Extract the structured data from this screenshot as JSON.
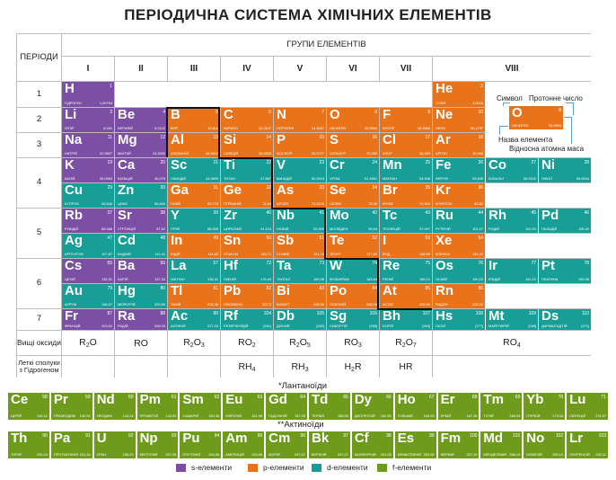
{
  "title": "ПЕРІОДИЧНА СИСТЕМА ХІМІЧНИХ ЕЛЕМЕНТІВ",
  "header": {
    "periods_label": "ПЕРІОДИ",
    "groups_label": "ГРУПИ ЕЛЕМЕНТІВ",
    "groups": [
      "I",
      "II",
      "III",
      "IV",
      "V",
      "VI",
      "VII",
      "VIII"
    ],
    "periods": [
      "1",
      "2",
      "3",
      "4",
      "5",
      "6",
      "7"
    ]
  },
  "elements": [
    {
      "sym": "H",
      "num": "1",
      "name": "Гідроген",
      "mass": "1,00794",
      "type": "s",
      "col": 0,
      "row": 0
    },
    {
      "sym": "He",
      "num": "2",
      "name": "Гелій",
      "mass": "4,0026",
      "type": "p",
      "col": 7,
      "row": 0
    },
    {
      "sym": "Li",
      "num": "3",
      "name": "Літій",
      "mass": "6,941",
      "type": "s",
      "col": 0,
      "row": 1
    },
    {
      "sym": "Be",
      "num": "4",
      "name": "Берилій",
      "mass": "9,0122",
      "type": "s",
      "col": 1,
      "row": 1
    },
    {
      "sym": "B",
      "num": "5",
      "name": "Бор",
      "mass": "10,811",
      "type": "p",
      "col": 2,
      "row": 1
    },
    {
      "sym": "C",
      "num": "6",
      "name": "Карбон",
      "mass": "12,0107",
      "type": "p",
      "col": 3,
      "row": 1
    },
    {
      "sym": "N",
      "num": "7",
      "name": "Нітроген",
      "mass": "14,0067",
      "type": "p",
      "col": 4,
      "row": 1
    },
    {
      "sym": "O",
      "num": "8",
      "name": "Оксиген",
      "mass": "15,9994",
      "type": "p",
      "col": 5,
      "row": 1
    },
    {
      "sym": "F",
      "num": "9",
      "name": "Флуор",
      "mass": "18,9984",
      "type": "p",
      "col": 6,
      "row": 1
    },
    {
      "sym": "Ne",
      "num": "10",
      "name": "Неон",
      "mass": "20,1797",
      "type": "p",
      "col": 7,
      "row": 1
    },
    {
      "sym": "Na",
      "num": "11",
      "name": "Натрій",
      "mass": "22,9897",
      "type": "s",
      "col": 0,
      "row": 2
    },
    {
      "sym": "Mg",
      "num": "12",
      "name": "Магній",
      "mass": "24,3050",
      "type": "s",
      "col": 1,
      "row": 2
    },
    {
      "sym": "Al",
      "num": "13",
      "name": "Алюміній",
      "mass": "26,9815",
      "type": "p",
      "col": 2,
      "row": 2
    },
    {
      "sym": "Si",
      "num": "14",
      "name": "Силіцій",
      "mass": "28,0855",
      "type": "p",
      "col": 3,
      "row": 2
    },
    {
      "sym": "P",
      "num": "15",
      "name": "Фосфор",
      "mass": "30,9737",
      "type": "p",
      "col": 4,
      "row": 2
    },
    {
      "sym": "S",
      "num": "16",
      "name": "Сульфур",
      "mass": "32,065",
      "type": "p",
      "col": 5,
      "row": 2
    },
    {
      "sym": "Cl",
      "num": "17",
      "name": "Хлор",
      "mass": "35,453",
      "type": "p",
      "col": 6,
      "row": 2
    },
    {
      "sym": "Ar",
      "num": "18",
      "name": "Аргон",
      "mass": "39,948",
      "type": "p",
      "col": 7,
      "row": 2
    },
    {
      "sym": "K",
      "num": "19",
      "name": "Калій",
      "mass": "39,0983",
      "type": "s",
      "col": 0,
      "row": 3
    },
    {
      "sym": "Ca",
      "num": "20",
      "name": "Кальцій",
      "mass": "40,078",
      "type": "s",
      "col": 1,
      "row": 3
    },
    {
      "sym": "Sc",
      "num": "21",
      "name": "Скандій",
      "mass": "44,9559",
      "type": "d",
      "col": 2,
      "row": 3
    },
    {
      "sym": "Ti",
      "num": "22",
      "name": "Титан",
      "mass": "47,867",
      "type": "d",
      "col": 3,
      "row": 3
    },
    {
      "sym": "V",
      "num": "23",
      "name": "Ванадій",
      "mass": "50,9415",
      "type": "d",
      "col": 4,
      "row": 3
    },
    {
      "sym": "Cr",
      "num": "24",
      "name": "Хром",
      "mass": "51,9961",
      "type": "d",
      "col": 5,
      "row": 3
    },
    {
      "sym": "Mn",
      "num": "25",
      "name": "Манган",
      "mass": "54,938",
      "type": "d",
      "col": 6,
      "row": 3
    },
    {
      "sym": "Fe",
      "num": "26",
      "name": "Ферум",
      "mass": "55,845",
      "type": "d",
      "col": 7,
      "row": 3,
      "sub": 0
    },
    {
      "sym": "Co",
      "num": "27",
      "name": "Кобальт",
      "mass": "58,9332",
      "type": "d",
      "col": 7,
      "row": 3,
      "sub": 1
    },
    {
      "sym": "Ni",
      "num": "28",
      "name": "Нікол",
      "mass": "58,6934",
      "type": "d",
      "col": 7,
      "row": 3,
      "sub": 2
    },
    {
      "sym": "Cu",
      "num": "29",
      "name": "Купрум",
      "mass": "63,546",
      "type": "d",
      "col": 0,
      "row": 4
    },
    {
      "sym": "Zn",
      "num": "30",
      "name": "Цинк",
      "mass": "65,409",
      "type": "d",
      "col": 1,
      "row": 4
    },
    {
      "sym": "Ga",
      "num": "31",
      "name": "Галій",
      "mass": "69,723",
      "type": "p",
      "col": 2,
      "row": 4
    },
    {
      "sym": "Ge",
      "num": "32",
      "name": "Германій",
      "mass": "72,64",
      "type": "p",
      "col": 3,
      "row": 4
    },
    {
      "sym": "As",
      "num": "33",
      "name": "Арсен",
      "mass": "74,9216",
      "type": "p",
      "col": 4,
      "row": 4
    },
    {
      "sym": "Se",
      "num": "34",
      "name": "Селен",
      "mass": "78,96",
      "type": "p",
      "col": 5,
      "row": 4
    },
    {
      "sym": "Br",
      "num": "35",
      "name": "Бром",
      "mass": "79,904",
      "type": "p",
      "col": 6,
      "row": 4
    },
    {
      "sym": "Kr",
      "num": "36",
      "name": "Криптон",
      "mass": "83,80",
      "type": "p",
      "col": 7,
      "row": 4
    },
    {
      "sym": "Rb",
      "num": "37",
      "name": "Рубідій",
      "mass": "85,468",
      "type": "s",
      "col": 0,
      "row": 5
    },
    {
      "sym": "Sr",
      "num": "38",
      "name": "Стронцій",
      "mass": "87,62",
      "type": "s",
      "col": 1,
      "row": 5
    },
    {
      "sym": "Y",
      "num": "39",
      "name": "Ітрій",
      "mass": "88,905",
      "type": "d",
      "col": 2,
      "row": 5
    },
    {
      "sym": "Zr",
      "num": "40",
      "name": "Цирконій",
      "mass": "91,224",
      "type": "d",
      "col": 3,
      "row": 5
    },
    {
      "sym": "Nb",
      "num": "41",
      "name": "Ніобій",
      "mass": "92,906",
      "type": "d",
      "col": 4,
      "row": 5
    },
    {
      "sym": "Mo",
      "num": "42",
      "name": "Молібден",
      "mass": "95,94",
      "type": "d",
      "col": 5,
      "row": 5
    },
    {
      "sym": "Tc",
      "num": "43",
      "name": "Технецій",
      "mass": "97,907",
      "type": "d",
      "col": 6,
      "row": 5
    },
    {
      "sym": "Ru",
      "num": "44",
      "name": "Рутеній",
      "mass": "101,07",
      "type": "d",
      "col": 7,
      "row": 5,
      "sub": 0
    },
    {
      "sym": "Rh",
      "num": "45",
      "name": "Родій",
      "mass": "102,91",
      "type": "d",
      "col": 7,
      "row": 5,
      "sub": 1
    },
    {
      "sym": "Pd",
      "num": "46",
      "name": "Паладій",
      "mass": "106,42",
      "type": "d",
      "col": 7,
      "row": 5,
      "sub": 2
    },
    {
      "sym": "Ag",
      "num": "47",
      "name": "Аргентум",
      "mass": "107,87",
      "type": "d",
      "col": 0,
      "row": 6
    },
    {
      "sym": "Cd",
      "num": "48",
      "name": "Кадмій",
      "mass": "112,41",
      "type": "d",
      "col": 1,
      "row": 6
    },
    {
      "sym": "In",
      "num": "49",
      "name": "Індій",
      "mass": "114,82",
      "type": "p",
      "col": 2,
      "row": 6
    },
    {
      "sym": "Sn",
      "num": "50",
      "name": "Станум",
      "mass": "118,71",
      "type": "p",
      "col": 3,
      "row": 6
    },
    {
      "sym": "Sb",
      "num": "51",
      "name": "Стибій",
      "mass": "121,76",
      "type": "p",
      "col": 4,
      "row": 6
    },
    {
      "sym": "Te",
      "num": "52",
      "name": "Телур",
      "mass": "127,60",
      "type": "p",
      "col": 5,
      "row": 6
    },
    {
      "sym": "I",
      "num": "53",
      "name": "Йод",
      "mass": "126,90",
      "type": "p",
      "col": 6,
      "row": 6
    },
    {
      "sym": "Xe",
      "num": "54",
      "name": "Ксенон",
      "mass": "131,29",
      "type": "p",
      "col": 7,
      "row": 6
    },
    {
      "sym": "Cs",
      "num": "55",
      "name": "Цезій",
      "mass": "132,91",
      "type": "s",
      "col": 0,
      "row": 7
    },
    {
      "sym": "Ba",
      "num": "56",
      "name": "Барій",
      "mass": "137,33",
      "type": "s",
      "col": 1,
      "row": 7
    },
    {
      "sym": "La",
      "num": "57",
      "name": "Лантан",
      "mass": "138,91",
      "type": "d",
      "col": 2,
      "row": 7
    },
    {
      "sym": "Hf",
      "num": "72",
      "name": "Гафній",
      "mass": "178,49",
      "type": "d",
      "col": 3,
      "row": 7
    },
    {
      "sym": "Ta",
      "num": "73",
      "name": "Тантал",
      "mass": "180,95",
      "type": "d",
      "col": 4,
      "row": 7
    },
    {
      "sym": "W",
      "num": "74",
      "name": "Вольфрам",
      "mass": "183,84",
      "type": "d",
      "col": 5,
      "row": 7
    },
    {
      "sym": "Re",
      "num": "75",
      "name": "Реній",
      "mass": "186,21",
      "type": "d",
      "col": 6,
      "row": 7
    },
    {
      "sym": "Os",
      "num": "76",
      "name": "Осмій",
      "mass": "190,23",
      "type": "d",
      "col": 7,
      "row": 7,
      "sub": 0
    },
    {
      "sym": "Ir",
      "num": "77",
      "name": "Іридій",
      "mass": "192,22",
      "type": "d",
      "col": 7,
      "row": 7,
      "sub": 1
    },
    {
      "sym": "Pt",
      "num": "78",
      "name": "Платина",
      "mass": "195,08",
      "type": "d",
      "col": 7,
      "row": 7,
      "sub": 2
    },
    {
      "sym": "Au",
      "num": "79",
      "name": "Аурум",
      "mass": "196,97",
      "type": "d",
      "col": 0,
      "row": 8
    },
    {
      "sym": "Hg",
      "num": "80",
      "name": "Меркурій",
      "mass": "200,59",
      "type": "d",
      "col": 1,
      "row": 8
    },
    {
      "sym": "Tl",
      "num": "81",
      "name": "Талій",
      "mass": "204,38",
      "type": "p",
      "col": 2,
      "row": 8
    },
    {
      "sym": "Pb",
      "num": "82",
      "name": "Плюмбум",
      "mass": "207,2",
      "type": "p",
      "col": 3,
      "row": 8
    },
    {
      "sym": "Bi",
      "num": "83",
      "name": "Бісмут",
      "mass": "208,98",
      "type": "p",
      "col": 4,
      "row": 8
    },
    {
      "sym": "Po",
      "num": "84",
      "name": "Полоній",
      "mass": "208,98",
      "type": "p",
      "col": 5,
      "row": 8
    },
    {
      "sym": "At",
      "num": "85",
      "name": "Астат",
      "mass": "209,99",
      "type": "p",
      "col": 6,
      "row": 8
    },
    {
      "sym": "Rn",
      "num": "86",
      "name": "Радон",
      "mass": "222,02",
      "type": "p",
      "col": 7,
      "row": 8
    },
    {
      "sym": "Fr",
      "num": "87",
      "name": "Францій",
      "mass": "223,02",
      "type": "s",
      "col": 0,
      "row": 9
    },
    {
      "sym": "Ra",
      "num": "88",
      "name": "Радій",
      "mass": "226,03",
      "type": "s",
      "col": 1,
      "row": 9
    },
    {
      "sym": "Ac",
      "num": "89",
      "name": "Актиній",
      "mass": "227,03",
      "type": "d",
      "col": 2,
      "row": 9
    },
    {
      "sym": "Rf",
      "num": "104",
      "name": "Резерфордій",
      "mass": "[261]",
      "type": "d",
      "col": 3,
      "row": 9
    },
    {
      "sym": "Db",
      "num": "105",
      "name": "Дубній",
      "mass": "[262]",
      "type": "d",
      "col": 4,
      "row": 9
    },
    {
      "sym": "Sg",
      "num": "106",
      "name": "Сиборгій",
      "mass": "[266]",
      "type": "d",
      "col": 5,
      "row": 9
    },
    {
      "sym": "Bh",
      "num": "107",
      "name": "Борій",
      "mass": "[264]",
      "type": "d",
      "col": 6,
      "row": 9
    },
    {
      "sym": "Hs",
      "num": "108",
      "name": "Гасій",
      "mass": "[277]",
      "type": "d",
      "col": 7,
      "row": 9,
      "sub": 0
    },
    {
      "sym": "Mt",
      "num": "109",
      "name": "Майтнерій",
      "mass": "[268]",
      "type": "d",
      "col": 7,
      "row": 9,
      "sub": 1
    },
    {
      "sym": "Ds",
      "num": "110",
      "name": "Дармштадтій",
      "mass": "[271]",
      "type": "d",
      "col": 7,
      "row": 9,
      "sub": 2
    }
  ],
  "oxides": {
    "label": "Вищі оксиди",
    "formulas": [
      [
        "R",
        "2",
        "O"
      ],
      [
        "RO",
        "",
        ""
      ],
      [
        "R",
        "2",
        "O",
        "3"
      ],
      [
        "RO",
        "2",
        ""
      ],
      [
        "R",
        "2",
        "O",
        "5"
      ],
      [
        "RO",
        "3",
        ""
      ],
      [
        "R",
        "2",
        "O",
        "7"
      ],
      [
        "RO",
        "4",
        ""
      ]
    ]
  },
  "hydrides": {
    "label": "Леткі сполуки з Гідрогеном",
    "formulas": [
      null,
      null,
      null,
      [
        "RH",
        "4"
      ],
      [
        "RH",
        "3"
      ],
      [
        "H",
        "2",
        "R"
      ],
      [
        "HR",
        ""
      ],
      null
    ]
  },
  "key": {
    "symbol_label": "Символ",
    "number_label": "Протонне число",
    "name_label": "Назва елемента",
    "mass_label": "Відносна атомна маса",
    "sample": {
      "sym": "O",
      "num": "8",
      "name": "Оксиген",
      "mass": "15,9994"
    }
  },
  "lanthanides": {
    "label": "*Лантаноїди",
    "items": [
      {
        "sym": "Ce",
        "num": "58",
        "name": "Церій",
        "mass": "140,12"
      },
      {
        "sym": "Pr",
        "num": "59",
        "name": "Празеодим",
        "mass": "140,91"
      },
      {
        "sym": "Nd",
        "num": "60",
        "name": "Неодим",
        "mass": "144,24"
      },
      {
        "sym": "Pm",
        "num": "61",
        "name": "Прометій",
        "mass": "144,91"
      },
      {
        "sym": "Sm",
        "num": "62",
        "name": "Самарій",
        "mass": "150,36"
      },
      {
        "sym": "Eu",
        "num": "63",
        "name": "Європій",
        "mass": "151,96"
      },
      {
        "sym": "Gd",
        "num": "64",
        "name": "Гадоліній",
        "mass": "157,25"
      },
      {
        "sym": "Td",
        "num": "65",
        "name": "Тербій",
        "mass": "158,93"
      },
      {
        "sym": "Dy",
        "num": "66",
        "name": "Диспрозій",
        "mass": "162,50"
      },
      {
        "sym": "Ho",
        "num": "67",
        "name": "Гольмій",
        "mass": "164,93"
      },
      {
        "sym": "Er",
        "num": "68",
        "name": "Ербій",
        "mass": "167,26"
      },
      {
        "sym": "Tm",
        "num": "69",
        "name": "Тулій",
        "mass": "168,93"
      },
      {
        "sym": "Yb",
        "num": "70",
        "name": "Ітербій",
        "mass": "173,04"
      },
      {
        "sym": "Lu",
        "num": "71",
        "name": "Лютецій",
        "mass": "174,97"
      }
    ]
  },
  "actinides": {
    "label": "**Актиноїди",
    "items": [
      {
        "sym": "Th",
        "num": "90",
        "name": "Торій",
        "mass": "232,04"
      },
      {
        "sym": "Pa",
        "num": "91",
        "name": "Протактиній",
        "mass": "231,04"
      },
      {
        "sym": "U",
        "num": "92",
        "name": "Уран",
        "mass": "238,03"
      },
      {
        "sym": "Np",
        "num": "93",
        "name": "Нептуній",
        "mass": "237,05"
      },
      {
        "sym": "Pu",
        "num": "94",
        "name": "Плутоній",
        "mass": "244,06"
      },
      {
        "sym": "Am",
        "num": "95",
        "name": "Америцій",
        "mass": "243,06"
      },
      {
        "sym": "Cm",
        "num": "96",
        "name": "Кюрій",
        "mass": "247,07"
      },
      {
        "sym": "Bk",
        "num": "97",
        "name": "Берклій",
        "mass": "247,07"
      },
      {
        "sym": "Cf",
        "num": "98",
        "name": "Каліфорній",
        "mass": "251,08"
      },
      {
        "sym": "Es",
        "num": "99",
        "name": "Ейнштейній",
        "mass": "252,08"
      },
      {
        "sym": "Fm",
        "num": "100",
        "name": "Фермій",
        "mass": "257,10"
      },
      {
        "sym": "Md",
        "num": "101",
        "name": "Менделевій",
        "mass": "258,10"
      },
      {
        "sym": "No",
        "num": "102",
        "name": "Нобелій",
        "mass": "259,10"
      },
      {
        "sym": "Lr",
        "num": "103",
        "name": "Лоуренсій",
        "mass": "262,11"
      }
    ]
  },
  "legend": [
    {
      "label": "s-елементи",
      "color": "#7b4fa3"
    },
    {
      "label": "p-елементи",
      "color": "#e8731a"
    },
    {
      "label": "d-елементи",
      "color": "#179e97"
    },
    {
      "label": "f-елементи",
      "color": "#6f9b1d"
    }
  ],
  "colors": {
    "s": "#7b4fa3",
    "p": "#e8731a",
    "d": "#179e97",
    "f": "#6f9b1d"
  }
}
